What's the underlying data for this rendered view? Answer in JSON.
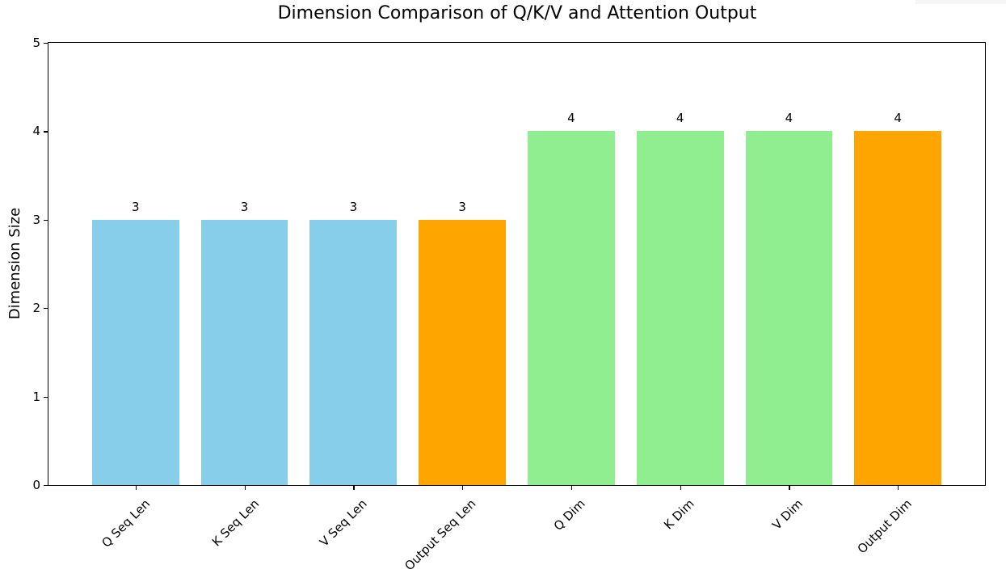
{
  "chart_data": {
    "type": "bar",
    "title": "Dimension Comparison of Q/K/V and Attention Output",
    "xlabel": "",
    "ylabel": "Dimension Size",
    "ylim": [
      0,
      5
    ],
    "yticks": [
      0,
      1,
      2,
      3,
      4,
      5
    ],
    "grid": false,
    "legend": null,
    "categories": [
      "Q Seq Len",
      "K Seq Len",
      "V Seq Len",
      "Output Seq Len",
      "Q Dim",
      "K Dim",
      "V Dim",
      "Output Dim"
    ],
    "values": [
      3,
      3,
      3,
      3,
      4,
      4,
      4,
      4
    ],
    "colors": [
      "#87ceeb",
      "#87ceeb",
      "#87ceeb",
      "#ffa500",
      "#90ee90",
      "#90ee90",
      "#90ee90",
      "#ffa500"
    ],
    "value_labels": [
      "3",
      "3",
      "3",
      "3",
      "4",
      "4",
      "4",
      "4"
    ],
    "xtick_rotation": 45
  }
}
